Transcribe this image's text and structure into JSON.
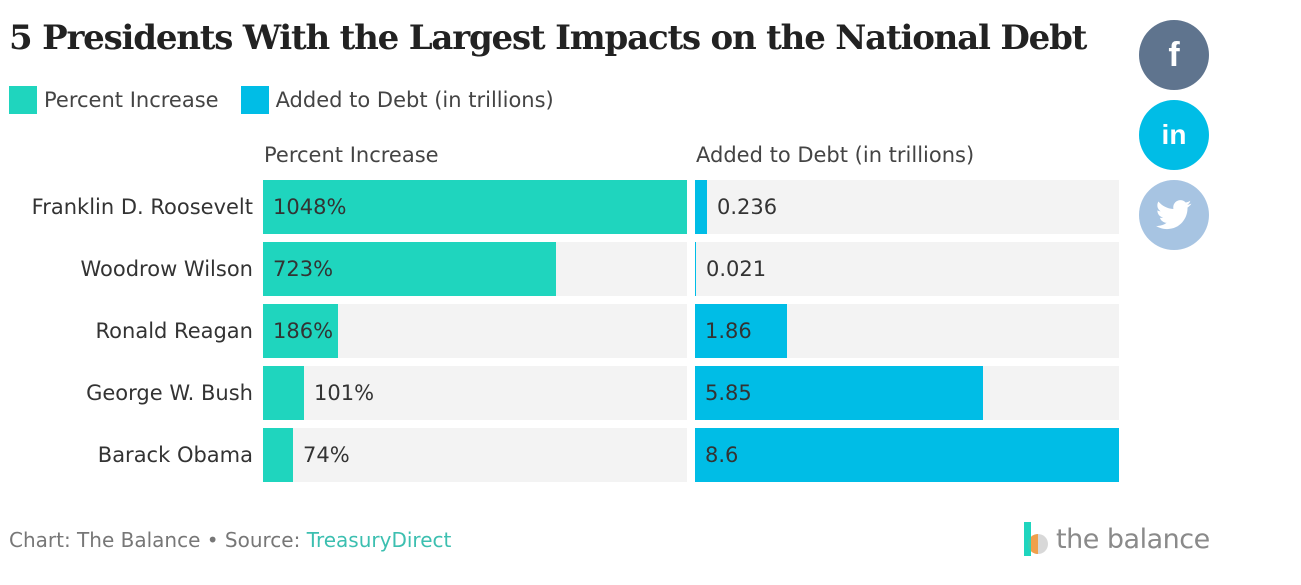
{
  "title": "5 Presidents With the Largest Impacts on the National Debt",
  "legend": [
    {
      "label": "Percent Increase",
      "color": "#1fd5be"
    },
    {
      "label": "Added to Debt (in trillions)",
      "color": "#00bde6"
    }
  ],
  "footer": {
    "prefix": "Chart: The Balance • Source: ",
    "source": "TreasuryDirect"
  },
  "brand": {
    "text": "the balance"
  },
  "social": [
    {
      "icon": "facebook-icon",
      "glyph": "f",
      "color": "#5f748e"
    },
    {
      "icon": "linkedin-icon",
      "glyph": "in",
      "color": "#00bde6"
    },
    {
      "icon": "twitter-icon",
      "glyph": "",
      "color": "#a7c4e2"
    }
  ],
  "chart_data": {
    "type": "bar",
    "orientation": "horizontal",
    "categories": [
      "Franklin D. Roosevelt",
      "Woodrow Wilson",
      "Ronald Reagan",
      "George W. Bush",
      "Barack Obama"
    ],
    "series": [
      {
        "name": "Percent Increase",
        "values": [
          1048,
          723,
          186,
          101,
          74
        ],
        "labels": [
          "1048%",
          "723%",
          "186%",
          "101%",
          "74%"
        ],
        "color": "#1fd5be",
        "max": 1048
      },
      {
        "name": "Added to Debt (in trillions)",
        "values": [
          0.236,
          0.021,
          1.86,
          5.85,
          8.6
        ],
        "labels": [
          "0.236",
          "0.021",
          "1.86",
          "5.85",
          "8.6"
        ],
        "color": "#00bde6",
        "max": 8.6
      }
    ],
    "legend_position": "top-left"
  }
}
